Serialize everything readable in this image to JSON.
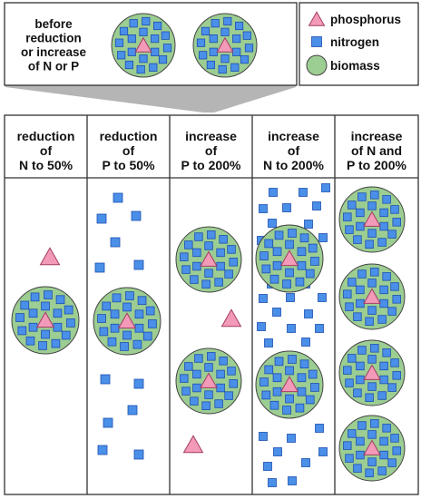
{
  "top": {
    "label_lines": [
      "before",
      "reduction",
      "or increase",
      "of N or P"
    ]
  },
  "legend": {
    "items": [
      {
        "shape": "triangle",
        "label": "phosphorus"
      },
      {
        "shape": "square",
        "label": "nitrogen"
      },
      {
        "shape": "circle",
        "label": "biomass"
      }
    ]
  },
  "columns": [
    {
      "key": "n50",
      "header": [
        "reduction",
        "of",
        "N to 50%"
      ]
    },
    {
      "key": "p50",
      "header": [
        "reduction",
        "of",
        "P to 50%"
      ]
    },
    {
      "key": "p200",
      "header": [
        "increase",
        "of",
        "P to 200%"
      ]
    },
    {
      "key": "n200",
      "header": [
        "increase",
        "of",
        "N to 200%"
      ]
    },
    {
      "key": "np200",
      "header": [
        "increase",
        "of N and",
        "P to 200%"
      ]
    }
  ],
  "colors": {
    "biomass_fill": "#9ccd92",
    "biomass_stroke": "#444444",
    "nitrogen_fill": "#4a8fe8",
    "nitrogen_stroke": "#1d4fb0",
    "phosphorus_fill": "#f29ab8",
    "phosphorus_stroke": "#a33d65",
    "funnel_fill": "#b5b5b5",
    "border": "#333333"
  }
}
